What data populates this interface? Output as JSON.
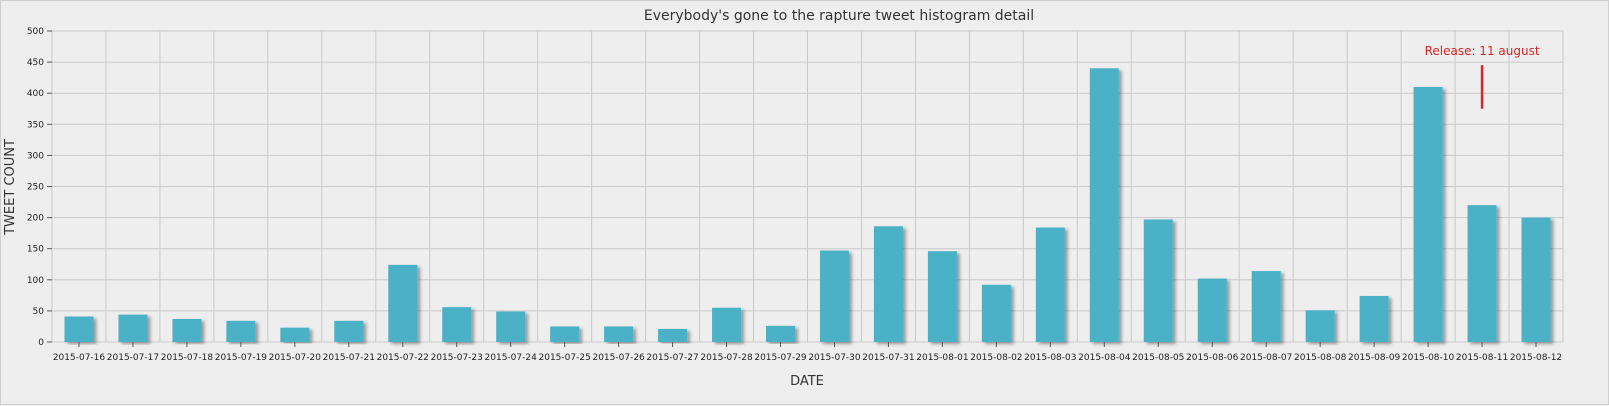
{
  "chart_data": {
    "type": "bar",
    "title": "Everybody's gone to the rapture tweet histogram detail",
    "xlabel": "DATE",
    "ylabel": "TWEET COUNT",
    "ylim": [
      0,
      500
    ],
    "yticks": [
      0,
      50,
      100,
      150,
      200,
      250,
      300,
      350,
      400,
      450,
      500
    ],
    "grid": true,
    "categories": [
      "2015-07-16",
      "2015-07-17",
      "2015-07-18",
      "2015-07-19",
      "2015-07-20",
      "2015-07-21",
      "2015-07-22",
      "2015-07-23",
      "2015-07-24",
      "2015-07-25",
      "2015-07-26",
      "2015-07-27",
      "2015-07-28",
      "2015-07-29",
      "2015-07-30",
      "2015-07-31",
      "2015-08-01",
      "2015-08-02",
      "2015-08-03",
      "2015-08-04",
      "2015-08-05",
      "2015-08-06",
      "2015-08-07",
      "2015-08-08",
      "2015-08-09",
      "2015-08-10",
      "2015-08-11",
      "2015-08-12"
    ],
    "values": [
      41,
      44,
      37,
      34,
      23,
      34,
      124,
      56,
      49,
      25,
      25,
      21,
      55,
      26,
      147,
      186,
      146,
      92,
      184,
      440,
      197,
      102,
      114,
      51,
      74,
      410,
      220,
      200
    ],
    "bar_color": "#4bb1c7",
    "annotation": {
      "text": "Release: 11 august",
      "category": "2015-08-11",
      "y_from": 375,
      "y_to": 445,
      "color": "#d62728"
    }
  }
}
